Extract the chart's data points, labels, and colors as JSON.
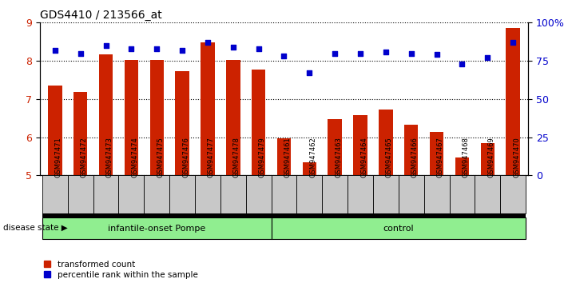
{
  "title": "GDS4410 / 213566_at",
  "samples": [
    "GSM947471",
    "GSM947472",
    "GSM947473",
    "GSM947474",
    "GSM947475",
    "GSM947476",
    "GSM947477",
    "GSM947478",
    "GSM947479",
    "GSM947461",
    "GSM947462",
    "GSM947463",
    "GSM947464",
    "GSM947465",
    "GSM947466",
    "GSM947467",
    "GSM947468",
    "GSM947469",
    "GSM947470"
  ],
  "bar_values": [
    7.35,
    7.18,
    8.17,
    8.02,
    8.02,
    7.72,
    8.48,
    8.03,
    7.77,
    5.98,
    5.35,
    6.48,
    6.57,
    6.72,
    6.32,
    6.15,
    5.48,
    5.85,
    8.87
  ],
  "dot_values": [
    82,
    80,
    85,
    83,
    83,
    82,
    87,
    84,
    83,
    78,
    67,
    80,
    80,
    81,
    80,
    79,
    73,
    77,
    87
  ],
  "ylim_left": [
    5,
    9
  ],
  "ylim_right": [
    0,
    100
  ],
  "yticks_left": [
    5,
    6,
    7,
    8,
    9
  ],
  "yticks_right": [
    0,
    25,
    50,
    75,
    100
  ],
  "ytick_right_labels": [
    "0",
    "25",
    "50",
    "75",
    "100%"
  ],
  "bar_color": "#CC2200",
  "dot_color": "#0000CC",
  "group1_label": "infantile-onset Pompe",
  "group2_label": "control",
  "group1_count": 9,
  "group2_count": 10,
  "group_color": "#90EE90",
  "disease_state_label": "disease state",
  "legend_bar_label": "transformed count",
  "legend_dot_label": "percentile rank within the sample",
  "bar_color_left_axis": "#CC2200",
  "dot_color_right_axis": "#0000CC",
  "tick_area_bg": "#C8C8C8",
  "bar_width": 0.55
}
